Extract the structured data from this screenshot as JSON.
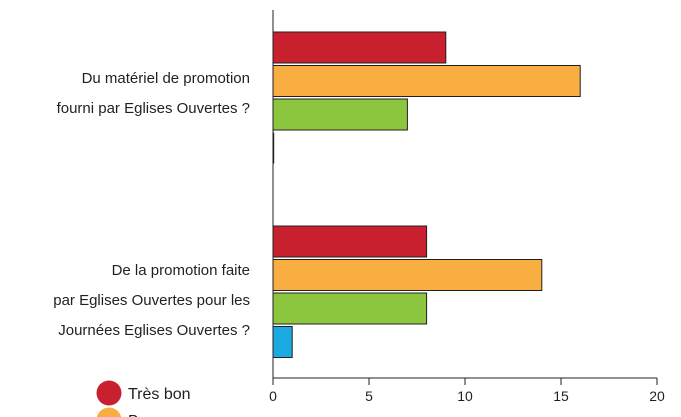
{
  "chart_data": {
    "type": "bar",
    "orientation": "horizontal",
    "categories": [
      [
        "Du matériel de promotion",
        "fourni par Eglises Ouvertes ?"
      ],
      [
        "De la promotion faite",
        "par Eglises Ouvertes pour les",
        "Journées Eglises Ouvertes ?"
      ]
    ],
    "series": [
      {
        "name": "Très bon",
        "color": "#c8202f",
        "values": [
          9,
          8
        ]
      },
      {
        "name": "Bon",
        "color": "#f9ae41",
        "values": [
          16,
          14
        ]
      },
      {
        "name": "",
        "color": "#8cc63f",
        "values": [
          7,
          8
        ]
      },
      {
        "name": "",
        "color": "#1ba9e1",
        "values": [
          0,
          1
        ]
      }
    ],
    "xlim": [
      0,
      20
    ],
    "xticks": [
      0,
      5,
      10,
      15,
      20
    ],
    "grid": false,
    "legend_position": "bottom-left"
  }
}
